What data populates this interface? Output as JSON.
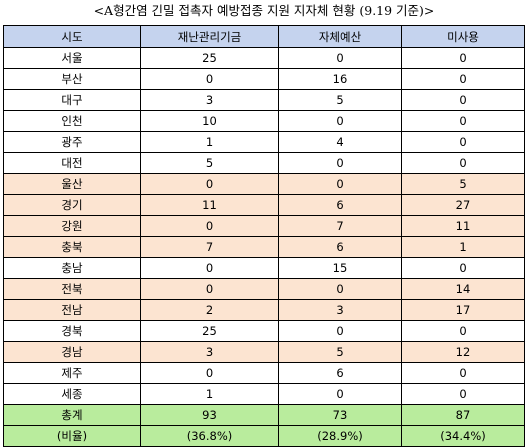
{
  "title": "<A형간염 긴밀 접촉자 예방접종 지원 지자체 현황 (9.19 기준)>",
  "headers": [
    "시도",
    "재난관리기금",
    "자체예산",
    "미사용"
  ],
  "rows": [
    {
      "region": "서울",
      "fund": "25",
      "budget": "0",
      "unused": "0",
      "highlight": false
    },
    {
      "region": "부산",
      "fund": "0",
      "budget": "16",
      "unused": "0",
      "highlight": false
    },
    {
      "region": "대구",
      "fund": "3",
      "budget": "5",
      "unused": "0",
      "highlight": false
    },
    {
      "region": "인천",
      "fund": "10",
      "budget": "0",
      "unused": "0",
      "highlight": false
    },
    {
      "region": "광주",
      "fund": "1",
      "budget": "4",
      "unused": "0",
      "highlight": false
    },
    {
      "region": "대전",
      "fund": "5",
      "budget": "0",
      "unused": "0",
      "highlight": false
    },
    {
      "region": "울산",
      "fund": "0",
      "budget": "0",
      "unused": "5",
      "highlight": true
    },
    {
      "region": "경기",
      "fund": "11",
      "budget": "6",
      "unused": "27",
      "highlight": true
    },
    {
      "region": "강원",
      "fund": "0",
      "budget": "7",
      "unused": "11",
      "highlight": true
    },
    {
      "region": "충북",
      "fund": "7",
      "budget": "6",
      "unused": "1",
      "highlight": true
    },
    {
      "region": "충남",
      "fund": "0",
      "budget": "15",
      "unused": "0",
      "highlight": false
    },
    {
      "region": "전북",
      "fund": "0",
      "budget": "0",
      "unused": "14",
      "highlight": true
    },
    {
      "region": "전남",
      "fund": "2",
      "budget": "3",
      "unused": "17",
      "highlight": true
    },
    {
      "region": "경북",
      "fund": "25",
      "budget": "0",
      "unused": "0",
      "highlight": false
    },
    {
      "region": "경남",
      "fund": "3",
      "budget": "5",
      "unused": "12",
      "highlight": true
    },
    {
      "region": "제주",
      "fund": "0",
      "budget": "6",
      "unused": "0",
      "highlight": false
    },
    {
      "region": "세종",
      "fund": "1",
      "budget": "0",
      "unused": "0",
      "highlight": false
    }
  ],
  "total": {
    "label": "총계",
    "fund": "93",
    "budget": "73",
    "unused": "87"
  },
  "ratio": {
    "label": "(비율)",
    "fund": "(36.8%)",
    "budget": "(28.9%)",
    "unused": "(34.4%)"
  },
  "colors": {
    "header_bg": "#c5d3ee",
    "highlight_bg": "#fce4d1",
    "total_bg": "#b9ec9d"
  }
}
